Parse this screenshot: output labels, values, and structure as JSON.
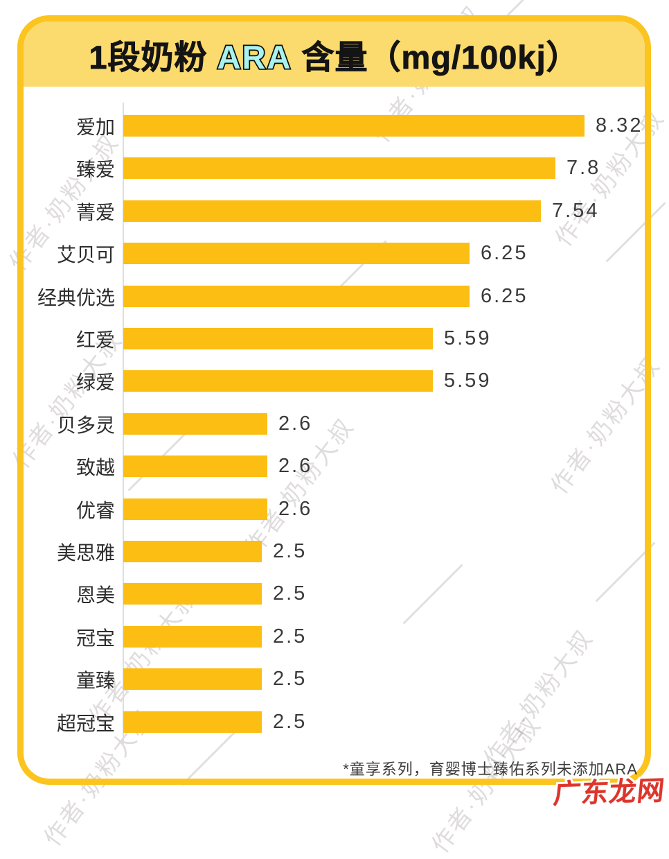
{
  "header": {
    "title_prefix": "1段奶粉 ",
    "title_highlight": "ARA",
    "title_suffix": " 含量（mg/100kj）",
    "highlight_color": "#A8F3F0",
    "band_color": "#FBDA6E",
    "frame_border_color": "#FBC41E"
  },
  "chart_data": {
    "type": "bar",
    "orientation": "horizontal",
    "title": "1段奶粉 ARA 含量（mg/100kj）",
    "unit": "mg/100kj",
    "categories": [
      "爱加",
      "臻爱",
      "菁爱",
      "艾贝可",
      "经典优选",
      "红爱",
      "绿爱",
      "贝多灵",
      "致越",
      "优睿",
      "美思雅",
      "恩美",
      "冠宝",
      "童臻",
      "超冠宝"
    ],
    "values": [
      8.32,
      7.8,
      7.54,
      6.25,
      6.25,
      5.59,
      5.59,
      2.6,
      2.6,
      2.6,
      2.5,
      2.5,
      2.5,
      2.5,
      2.5
    ],
    "value_labels": [
      "8.32",
      "7.8",
      "7.54",
      "6.25",
      "6.25",
      "5.59",
      "5.59",
      "2.6",
      "2.6",
      "2.6",
      "2.5",
      "2.5",
      "2.5",
      "2.5",
      "2.5"
    ],
    "xlim": [
      0,
      8.32
    ],
    "grid": false,
    "legend_position": "none",
    "bar_color": "#FCBE13",
    "category_label_color": "#2D2D2D",
    "value_label_color": "#3A3A3A",
    "axis_line_color": "#DEDEDE"
  },
  "footnote": "*童享系列，育婴博士臻佑系列未添加ARA",
  "watermark": {
    "text": "作者·奶粉大叔"
  },
  "logo": {
    "text": "广东龙网",
    "color": "#E0342B"
  }
}
